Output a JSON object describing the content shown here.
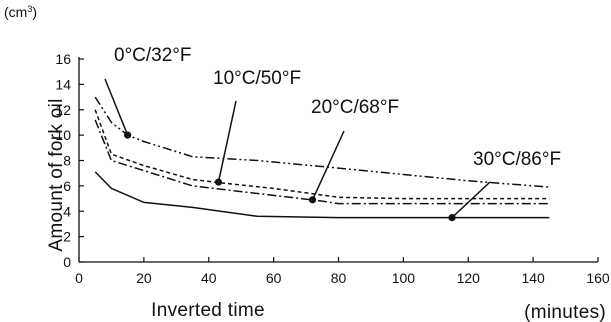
{
  "chart_data": {
    "type": "line",
    "xlabel": "Inverted time",
    "xunit": "(minutes)",
    "ylabel": "Amount of fork oil",
    "yunit": "(cm³)",
    "yunit_base": "(cm",
    "yunit_sup": "3",
    "yunit_close": ")",
    "xlim": [
      0,
      160
    ],
    "ylim": [
      0,
      16
    ],
    "xticks": [
      "0",
      "20",
      "40",
      "60",
      "80",
      "100",
      "120",
      "140",
      "160"
    ],
    "yticks": [
      "0",
      "2",
      "4",
      "6",
      "8",
      "10",
      "12",
      "14",
      "16"
    ],
    "grid": false,
    "series": [
      {
        "name": "0°C/32°F",
        "dash": "dash-dot-dot",
        "x": [
          5,
          10,
          15,
          20,
          35,
          55,
          80,
          100,
          120,
          145
        ],
        "y": [
          13.0,
          11.0,
          10.0,
          9.5,
          8.3,
          8.0,
          7.4,
          6.9,
          6.4,
          5.9
        ]
      },
      {
        "name": "10°C/50°F",
        "dash": "dashed",
        "x": [
          5,
          10,
          20,
          35,
          45,
          60,
          80,
          100,
          120,
          145
        ],
        "y": [
          12.0,
          8.5,
          7.6,
          6.5,
          6.2,
          5.8,
          5.1,
          5.0,
          5.0,
          5.0
        ]
      },
      {
        "name": "20°C/68°F",
        "dash": "dash-dot",
        "x": [
          5,
          10,
          20,
          35,
          55,
          75,
          80,
          100,
          120,
          145
        ],
        "y": [
          11.2,
          8.0,
          7.2,
          6.0,
          5.4,
          4.8,
          4.6,
          4.6,
          4.6,
          4.6
        ]
      },
      {
        "name": "30°C/86°F",
        "dash": "solid",
        "x": [
          5,
          10,
          20,
          35,
          55,
          80,
          100,
          115,
          145
        ],
        "y": [
          7.1,
          5.8,
          4.7,
          4.3,
          3.6,
          3.5,
          3.5,
          3.5,
          3.5
        ]
      }
    ],
    "annotations": [
      {
        "text": "0°C/32°F",
        "series": 0,
        "point_x": 15,
        "point_y": 10.0
      },
      {
        "text": "10°C/50°F",
        "series": 1,
        "point_x": 43,
        "point_y": 6.3
      },
      {
        "text": "20°C/68°F",
        "series": 2,
        "point_x": 72,
        "point_y": 4.9
      },
      {
        "text": "30°C/86°F",
        "series": 3,
        "point_x": 115,
        "point_y": 3.5
      }
    ]
  }
}
